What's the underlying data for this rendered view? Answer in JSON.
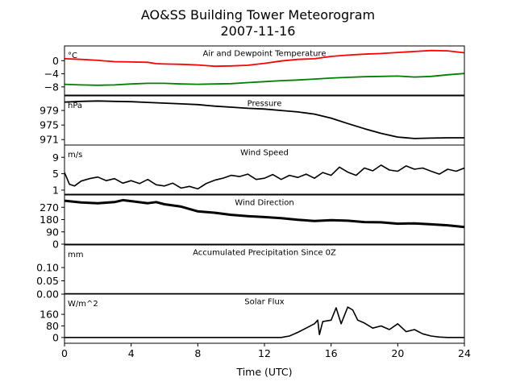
{
  "figure": {
    "title_line1": "AO&SS Building Tower Meteorogram",
    "title_line2": "2007-11-16",
    "xlabel": "Time (UTC)"
  },
  "chart_data": {
    "type": "line",
    "xlim": [
      0,
      24
    ],
    "xticks": [
      0,
      4,
      8,
      12,
      16,
      20,
      24
    ],
    "grid": false,
    "panels": [
      {
        "title": "Air and Dewpoint Temperature",
        "unit": "°C",
        "ylim": [
          -10.5,
          4.5
        ],
        "yticks": [
          0,
          -4,
          -8
        ],
        "series": [
          {
            "color": "#ff0000",
            "line_width": 1.8,
            "x": [
              0,
              1,
              2,
              3,
              4,
              5,
              5.5,
              6,
              7,
              8,
              9,
              10,
              11,
              12,
              13,
              14,
              15,
              16,
              17,
              18,
              19,
              20,
              21,
              22,
              23,
              24
            ],
            "y": [
              0.6,
              0.4,
              0.1,
              -0.3,
              -0.4,
              -0.5,
              -0.9,
              -1.0,
              -1.1,
              -1.3,
              -1.7,
              -1.6,
              -1.4,
              -0.8,
              -0.1,
              0.4,
              0.6,
              1.3,
              1.7,
              2.0,
              2.2,
              2.5,
              2.8,
              3.1,
              3.0,
              2.4
            ]
          },
          {
            "color": "#008000",
            "line_width": 1.8,
            "x": [
              0,
              1,
              2,
              3,
              4,
              5,
              6,
              7,
              8,
              9,
              10,
              11,
              12,
              13,
              14,
              15,
              16,
              17,
              18,
              19,
              20,
              21,
              22,
              23,
              24
            ],
            "y": [
              -7.2,
              -7.4,
              -7.5,
              -7.4,
              -7.1,
              -6.9,
              -6.9,
              -7.1,
              -7.2,
              -7.1,
              -7.0,
              -6.7,
              -6.4,
              -6.1,
              -5.9,
              -5.6,
              -5.3,
              -5.1,
              -4.9,
              -4.8,
              -4.7,
              -5.0,
              -4.8,
              -4.3,
              -3.9
            ]
          }
        ]
      },
      {
        "title": "Pressure",
        "unit": "hPa",
        "ylim": [
          969.5,
          983.0
        ],
        "yticks": [
          979,
          975,
          971
        ],
        "series": [
          {
            "color": "#000000",
            "line_width": 1.8,
            "x": [
              0,
              1,
              2,
              3,
              4,
              5,
              6,
              7,
              8,
              9,
              10,
              11,
              12,
              13,
              14,
              15,
              16,
              17,
              18,
              19,
              20,
              21,
              22,
              23,
              24
            ],
            "y": [
              981.3,
              981.5,
              981.6,
              981.5,
              981.4,
              981.2,
              981.0,
              980.8,
              980.6,
              980.2,
              979.9,
              979.6,
              979.4,
              979.0,
              978.6,
              978.0,
              976.9,
              975.4,
              974.0,
              972.7,
              971.7,
              971.3,
              971.4,
              971.5,
              971.5
            ]
          }
        ]
      },
      {
        "title": "Wind Speed",
        "unit": "m/s",
        "ylim": [
          0,
          12.0
        ],
        "yticks": [
          9,
          5,
          1
        ],
        "series": [
          {
            "color": "#000000",
            "line_width": 1.6,
            "x": [
              0,
              0.3,
              0.6,
              1,
              1.5,
              2,
              2.5,
              3,
              3.5,
              4,
              4.5,
              5,
              5.5,
              6,
              6.5,
              7,
              7.5,
              8,
              8.5,
              9,
              9.5,
              10,
              10.5,
              11,
              11.5,
              12,
              12.5,
              13,
              13.5,
              14,
              14.5,
              15,
              15.5,
              16,
              16.5,
              17,
              17.5,
              18,
              18.5,
              19,
              19.5,
              20,
              20.5,
              21,
              21.5,
              22,
              22.5,
              23,
              23.5,
              24
            ],
            "y": [
              5.3,
              2.4,
              2.0,
              3.2,
              3.8,
              4.2,
              3.3,
              3.8,
              2.7,
              3.3,
              2.6,
              3.6,
              2.3,
              2.0,
              2.7,
              1.5,
              1.9,
              1.3,
              2.6,
              3.4,
              3.9,
              4.6,
              4.3,
              4.9,
              3.6,
              3.9,
              4.8,
              3.6,
              4.6,
              4.1,
              4.9,
              3.9,
              5.3,
              4.6,
              6.6,
              5.4,
              4.6,
              6.4,
              5.7,
              7.1,
              5.9,
              5.6,
              6.9,
              6.1,
              6.4,
              5.6,
              4.9,
              6.1,
              5.6,
              6.4
            ]
          }
        ]
      },
      {
        "title": "Wind Direction",
        "unit": "",
        "ylim": [
          0,
          360
        ],
        "yticks": [
          270,
          180,
          90,
          0
        ],
        "series": [
          {
            "color": "#000000",
            "line_width": 3.0,
            "x": [
              0,
              1,
              2,
              3,
              3.5,
              4,
              5,
              5.5,
              6,
              7,
              8,
              9,
              10,
              11,
              12,
              13,
              14,
              15,
              16,
              17,
              18,
              19,
              20,
              21,
              22,
              23,
              24
            ],
            "y": [
              318,
              305,
              300,
              308,
              322,
              315,
              300,
              308,
              292,
              275,
              240,
              230,
              215,
              205,
              198,
              190,
              178,
              170,
              176,
              172,
              162,
              160,
              150,
              152,
              145,
              138,
              125
            ]
          }
        ]
      },
      {
        "title": "Accumulated Precipitation Since 0Z",
        "unit": "mm",
        "ylim": [
          0,
          0.185
        ],
        "yticks": [
          0.1,
          0.05,
          0.0
        ],
        "ytick_labels": [
          "0.10",
          "0.05",
          "0.00"
        ],
        "series": [
          {
            "color": "#000000",
            "line_width": 2.5,
            "x": [
              0,
              24
            ],
            "y": [
              0.0,
              0.0
            ]
          }
        ]
      },
      {
        "title": "Solar Flux",
        "unit": "W/m^2",
        "ylim": [
          -40,
          300
        ],
        "yticks": [
          160,
          80,
          0
        ],
        "series": [
          {
            "color": "#000000",
            "line_width": 1.6,
            "x": [
              0,
              13,
              13.5,
              14,
              14.5,
              15,
              15.2,
              15.3,
              15.5,
              16,
              16.3,
              16.6,
              17,
              17.3,
              17.6,
              18,
              18.5,
              19,
              19.5,
              20,
              20.5,
              21,
              21.5,
              22,
              22.5,
              23,
              24
            ],
            "y": [
              0,
              0,
              10,
              35,
              65,
              95,
              120,
              20,
              110,
              120,
              205,
              95,
              210,
              190,
              120,
              100,
              65,
              80,
              55,
              95,
              40,
              55,
              25,
              10,
              3,
              0,
              0
            ]
          }
        ]
      }
    ]
  }
}
